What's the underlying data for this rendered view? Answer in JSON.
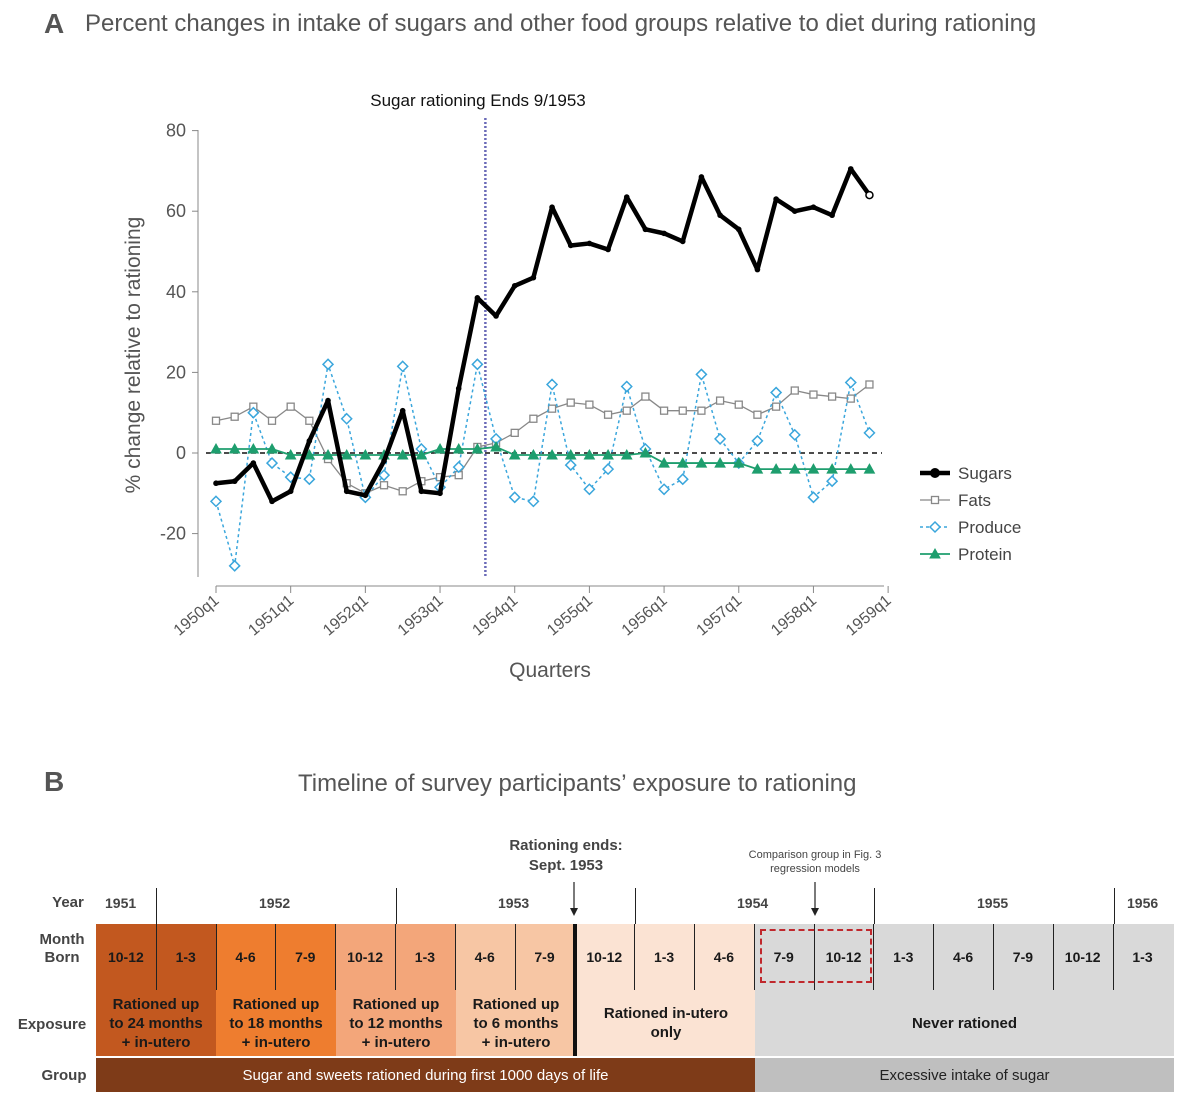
{
  "panel_a": {
    "letter": "A",
    "title": "Percent changes in intake of sugars and other food groups relative to diet during rationing"
  },
  "chart_data": {
    "type": "line",
    "title": "Percent changes in intake of sugars and other food groups relative to diet during rationing",
    "xlabel": "Quarters",
    "ylabel": "% change relative to rationing",
    "ylim": [
      -32,
      85
    ],
    "yticks": [
      80,
      60,
      40,
      20,
      0,
      -20
    ],
    "xticks": [
      "1950q1",
      "1951q1",
      "1952q1",
      "1953q1",
      "1954q1",
      "1955q1",
      "1956q1",
      "1957q1",
      "1958q1",
      "1959q1"
    ],
    "quarters_count": 37,
    "annotation": "Sugar rationing Ends 9/1953",
    "annotation_quarter_index": 14,
    "series": [
      {
        "name": "Sugars",
        "color": "#000000",
        "values": [
          -7.5,
          -7,
          -2.5,
          -12,
          -9.5,
          3,
          13,
          -9.5,
          -10.5,
          -2,
          10.5,
          -9.5,
          -10,
          16,
          38.5,
          34,
          41.5,
          43.5,
          61,
          51.5,
          52,
          50.5,
          63.5,
          55.5,
          54.5,
          52.5,
          68.5,
          59,
          55.5,
          45.5,
          63,
          60,
          61,
          59,
          70.5,
          64
        ]
      },
      {
        "name": "Fats",
        "color": "#888888",
        "values": [
          8,
          9,
          11.5,
          8,
          11.5,
          8,
          -1.5,
          -7.5,
          -10,
          -8,
          -9.5,
          -7,
          -6,
          -5.5,
          1.5,
          2.5,
          5,
          8.5,
          11,
          12.5,
          12,
          9.5,
          10.5,
          14,
          10.5,
          10.5,
          10.5,
          13,
          12,
          9.5,
          11.5,
          15.5,
          14.5,
          14,
          13.5,
          17
        ]
      },
      {
        "name": "Produce",
        "color": "#3aa6dc",
        "values": [
          -12,
          -28,
          10,
          -2.5,
          -6,
          -6.5,
          22,
          8.5,
          -11,
          -5.5,
          21.5,
          1,
          -8.5,
          -3.5,
          22,
          3.5,
          -11,
          -12,
          17,
          -3,
          -9,
          -4,
          16.5,
          1,
          -9,
          -6.5,
          19.5,
          3.5,
          -2.5,
          3,
          15,
          4.5,
          -11,
          -7,
          17.5,
          5
        ]
      },
      {
        "name": "Protein",
        "color": "#1e9e6e",
        "values": [
          1,
          1,
          1,
          1,
          -0.5,
          -0.5,
          -0.5,
          -0.5,
          -0.5,
          -0.5,
          -0.5,
          -0.5,
          1,
          1,
          1,
          1.5,
          -0.5,
          -0.5,
          -0.5,
          -0.5,
          -0.5,
          -0.5,
          -0.5,
          0,
          -2.5,
          -2.5,
          -2.5,
          -2.5,
          -2.5,
          -4,
          -4,
          -4,
          -4,
          -4,
          -4,
          -4
        ]
      }
    ],
    "legend": [
      "Sugars",
      "Fats",
      "Produce",
      "Protein"
    ],
    "legend_position": "right"
  },
  "panel_b": {
    "letter": "B",
    "title": "Timeline of survey participants’ exposure to rationing",
    "rationing_ends": [
      "Rationing ends:",
      "Sept. 1953"
    ],
    "comparison": [
      "Comparison group in Fig. 3",
      "regression models"
    ],
    "row_labels": {
      "year": "Year",
      "month": [
        "Month",
        "Born"
      ],
      "exposure": "Exposure",
      "group": "Group"
    },
    "years": [
      "1951",
      "1952",
      "1953",
      "1954",
      "1955",
      "1956"
    ],
    "months": [
      "10-12",
      "1-3",
      "4-6",
      "7-9",
      "10-12",
      "1-3",
      "4-6",
      "7-9",
      "10-12",
      "1-3",
      "4-6",
      "7-9",
      "10-12",
      "1-3",
      "4-6",
      "7-9",
      "10-12",
      "1-3"
    ],
    "exposures": [
      [
        "Rationed up",
        "to 24 months",
        "+ in-utero"
      ],
      [
        "Rationed up",
        "to 18 months",
        "+ in-utero"
      ],
      [
        "Rationed up",
        "to 12 months",
        "+ in-utero"
      ],
      [
        "Rationed up",
        "to 6 months",
        "+ in-utero"
      ],
      [
        "Rationed in-utero",
        "only"
      ],
      [
        "Never rationed"
      ]
    ],
    "groups": [
      "Sugar and sweets rationed during first 1000 days of life",
      "Excessive intake of sugar"
    ],
    "colors": {
      "dark1": "#c2581f",
      "dark2": "#ee7d2f",
      "mid1": "#f3a67a",
      "mid2": "#f7c6a4",
      "light": "#fbe3d3",
      "grey": "#d9d9d9",
      "group_brown": "#7e3b18",
      "group_grey": "#bfbfbf",
      "dashed": "#c0282d"
    }
  }
}
